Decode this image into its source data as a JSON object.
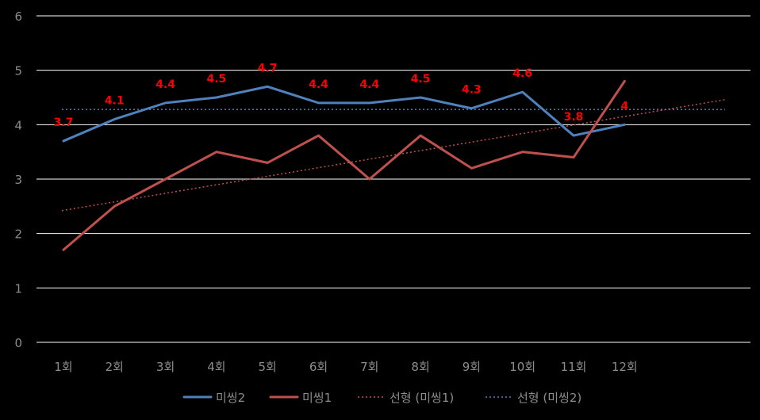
{
  "chart_data": {
    "type": "line",
    "categories": [
      "1회",
      "2회",
      "3회",
      "4회",
      "5회",
      "6회",
      "7회",
      "8회",
      "9회",
      "10회",
      "11회",
      "12회"
    ],
    "ylim": [
      0,
      6
    ],
    "yticks": [
      "0",
      "1",
      "2",
      "3",
      "4",
      "5",
      "6"
    ],
    "grid": true,
    "legend_position": "bottom",
    "series": [
      {
        "name": "미씽2",
        "color": "#4f81bd",
        "values": [
          3.7,
          4.1,
          4.4,
          4.5,
          4.7,
          4.4,
          4.4,
          4.5,
          4.3,
          4.6,
          3.8,
          4.0
        ],
        "data_labels": [
          "3.7",
          "4.1",
          "4.4",
          "4.5",
          "4.7",
          "4.4",
          "4.4",
          "4.5",
          "4.3",
          "4.6",
          "3.8",
          "4"
        ]
      },
      {
        "name": "미씽1",
        "color": "#c0504d",
        "values": [
          1.7,
          2.5,
          3.0,
          3.5,
          3.3,
          3.8,
          3.0,
          3.8,
          3.2,
          3.5,
          3.4,
          4.8
        ]
      }
    ],
    "trendlines": [
      {
        "name": "선형 (미씽1)",
        "color": "#c0504d",
        "start": 2.42,
        "end": 4.46
      },
      {
        "name": "선형 (미씽2)",
        "color": "#4f81bd",
        "start": 4.28,
        "end": 4.28
      }
    ]
  }
}
